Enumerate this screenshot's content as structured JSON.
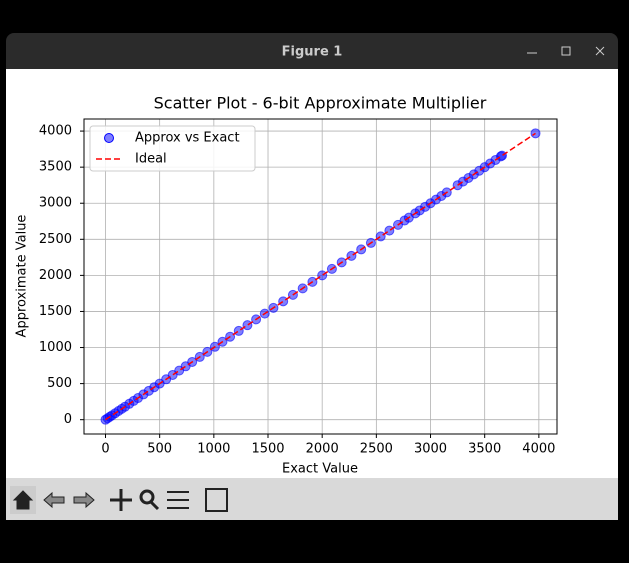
{
  "window": {
    "title": "Figure 1"
  },
  "chart_data": {
    "type": "scatter",
    "title": "Scatter Plot - 6-bit Approximate Multiplier",
    "xlabel": "Exact Value",
    "ylabel": "Approximate Value",
    "xlim": [
      -198.45,
      4167.45
    ],
    "ylim": [
      -198.45,
      4167.45
    ],
    "xticks": [
      0,
      500,
      1000,
      1500,
      2000,
      2500,
      3000,
      3500,
      4000
    ],
    "yticks": [
      0,
      500,
      1000,
      1500,
      2000,
      2500,
      3000,
      3500,
      4000
    ],
    "grid": true,
    "legend": "upper left",
    "series": [
      {
        "name": "Approx vs Exact",
        "color": "#0000ff",
        "kind": "points",
        "x": [
          0,
          20,
          40,
          60,
          90,
          120,
          150,
          180,
          220,
          260,
          300,
          350,
          400,
          450,
          500,
          560,
          620,
          680,
          740,
          800,
          870,
          940,
          1010,
          1080,
          1150,
          1230,
          1310,
          1390,
          1470,
          1550,
          1640,
          1730,
          1820,
          1910,
          2000,
          2090,
          2180,
          2270,
          2360,
          2450,
          2540,
          2620,
          2700,
          2760,
          2800,
          2860,
          2900,
          2950,
          3000,
          3050,
          3100,
          3150,
          3250,
          3300,
          3350,
          3400,
          3450,
          3500,
          3550,
          3600,
          3650,
          3660,
          3969
        ],
        "values": [
          0,
          20,
          40,
          60,
          90,
          120,
          150,
          180,
          220,
          260,
          300,
          350,
          400,
          450,
          500,
          560,
          620,
          680,
          740,
          800,
          870,
          940,
          1010,
          1080,
          1150,
          1230,
          1310,
          1390,
          1470,
          1550,
          1640,
          1730,
          1820,
          1910,
          2000,
          2090,
          2180,
          2270,
          2360,
          2450,
          2540,
          2620,
          2700,
          2760,
          2800,
          2860,
          2900,
          2950,
          3000,
          3050,
          3100,
          3150,
          3250,
          3300,
          3350,
          3400,
          3450,
          3500,
          3550,
          3600,
          3650,
          3660,
          3969
        ]
      },
      {
        "name": "Ideal",
        "color": "#ff0000",
        "kind": "dashed-line",
        "x": [
          0,
          3969
        ],
        "values": [
          0,
          3969
        ]
      }
    ]
  }
}
